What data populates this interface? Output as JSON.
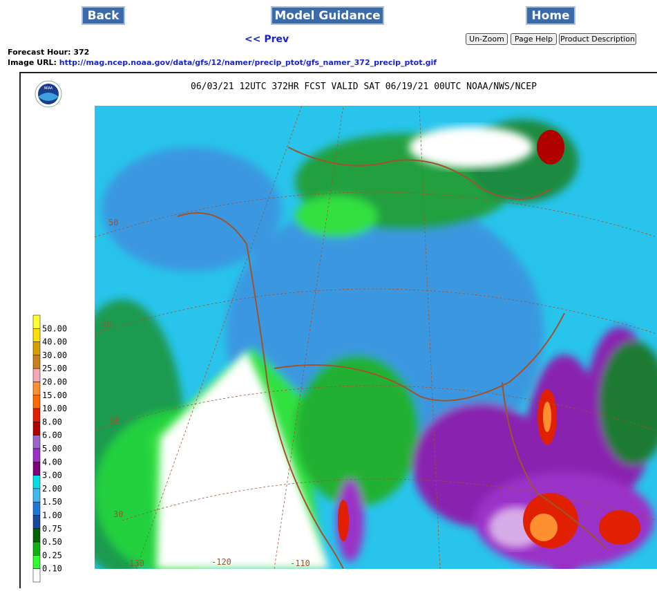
{
  "header": {
    "back": "Back",
    "model_guidance": "Model Guidance",
    "home": "Home",
    "prev": "<< Prev"
  },
  "tools": [
    "Un-Zoom",
    "Page Help",
    "Product Description"
  ],
  "info": {
    "forecast_hour_label": "Forecast Hour:",
    "forecast_hour": "372",
    "image_url_label": "Image URL:",
    "image_url": "http://mag.ncep.noaa.gov/data/gfs/12/namer/precip_ptot/gfs_namer_372_precip_ptot.gif"
  },
  "map": {
    "logo": "NOAA",
    "title": "06/03/21 12UTC 372HR FCST VALID SAT 06/19/21 00UTC NOAA/NWS/NCEP",
    "lat_labels": [
      "50",
      "40",
      "30",
      "30"
    ],
    "lon_labels": [
      "-130",
      "-120",
      "-110"
    ],
    "legend": [
      {
        "label": "50.00",
        "color": "#ffff33"
      },
      {
        "label": "40.00",
        "color": "#ffe000"
      },
      {
        "label": "30.00",
        "color": "#d7a000"
      },
      {
        "label": "25.00",
        "color": "#c8801e"
      },
      {
        "label": "20.00",
        "color": "#f7a8b8"
      },
      {
        "label": "15.00",
        "color": "#ff9030"
      },
      {
        "label": "10.00",
        "color": "#ff6a00"
      },
      {
        "label": "8.00",
        "color": "#e02000"
      },
      {
        "label": "6.00",
        "color": "#b00000"
      },
      {
        "label": "5.00",
        "color": "#9966cc"
      },
      {
        "label": "4.00",
        "color": "#9b30c8"
      },
      {
        "label": "3.00",
        "color": "#800080"
      },
      {
        "label": "2.00",
        "color": "#00e0e8"
      },
      {
        "label": "1.50",
        "color": "#40b8f0"
      },
      {
        "label": "1.00",
        "color": "#1e78d8"
      },
      {
        "label": "0.75",
        "color": "#1a4a9a"
      },
      {
        "label": "0.50",
        "color": "#006400"
      },
      {
        "label": "0.25",
        "color": "#10b010"
      },
      {
        "label": "0.10",
        "color": "#30ff30"
      }
    ]
  }
}
